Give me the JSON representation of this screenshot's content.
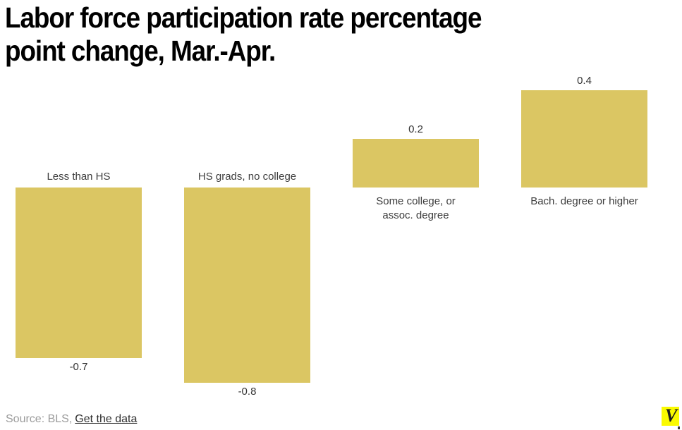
{
  "header": {
    "title_line1": "Labor force participation rate percentage",
    "title_line2": "point change, Mar.-Apr."
  },
  "chart_data": {
    "type": "bar",
    "title": "Labor force participation rate percentage point change, Mar.-Apr.",
    "categories": [
      "Less than HS",
      "HS grads, no college",
      "Some college, or assoc. degree",
      "Bach. degree or higher"
    ],
    "display_labels": [
      "Less than HS",
      "HS grads, no college",
      "Some college, or\nassoc. degree",
      "Bach. degree or higher"
    ],
    "values": [
      -0.7,
      -0.8,
      0.2,
      0.4
    ],
    "value_labels": [
      "-0.7",
      "-0.8",
      "0.2",
      "0.4"
    ],
    "xlabel": "",
    "ylabel": "",
    "ylim": [
      -0.9,
      0.5
    ],
    "baseline": 0,
    "grid": false,
    "legend": null,
    "colors": {
      "bar": "#DBC663",
      "label": "#3D3D3D",
      "value": "#333333",
      "title": "#000000",
      "source": "#9B9B9B",
      "link": "#2E2E2E"
    }
  },
  "footer": {
    "source_prefix": "Source: BLS,",
    "link_label": "Get the data"
  },
  "logo": {
    "letter": "V",
    "bg_color": "#FAFA00"
  }
}
